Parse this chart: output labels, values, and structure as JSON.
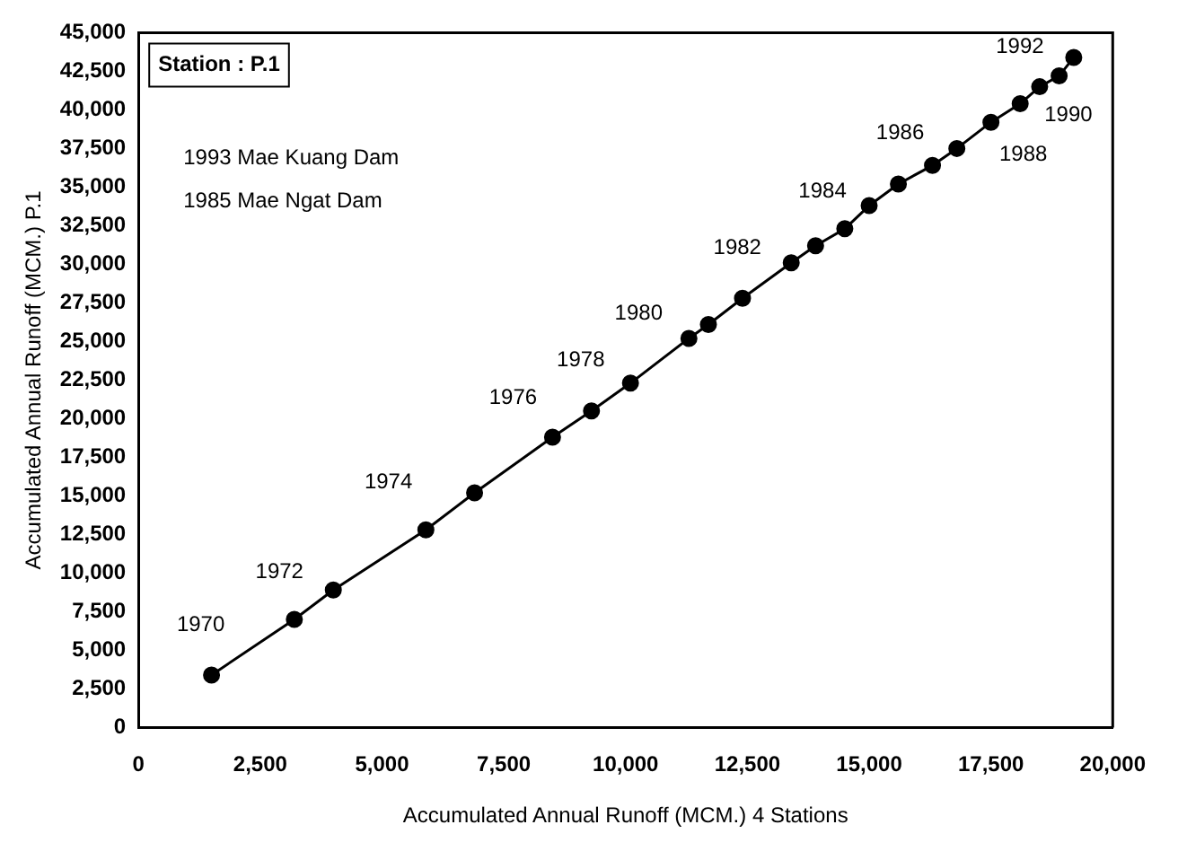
{
  "chart_data": {
    "type": "line",
    "xlabel": "Accumulated Annual Runoff (MCM.) 4 Stations",
    "ylabel": "Accumulated Annual Runoff (MCM.) P.1",
    "x": [
      1500,
      3200,
      4000,
      5900,
      6900,
      8500,
      9300,
      10100,
      11300,
      11700,
      12400,
      13400,
      13900,
      14500,
      15000,
      15600,
      16300,
      16800,
      17500,
      18100,
      18500,
      18900,
      19200
    ],
    "series": [
      {
        "color": "#000000",
        "values": [
          3400,
          7000,
          8900,
          12800,
          15200,
          18800,
          20500,
          22300,
          25200,
          26100,
          27800,
          30100,
          31200,
          32300,
          33800,
          35200,
          36400,
          37500,
          39200,
          40400,
          41500,
          42200,
          43400
        ]
      }
    ],
    "xlim": [
      0,
      20000
    ],
    "xticks": [
      0,
      {
        "value": 2500,
        "label": "2,500"
      },
      {
        "value": 5000,
        "label": "5,000"
      },
      {
        "value": 7500,
        "label": "7,500"
      },
      {
        "value": 10000,
        "label": "10,000"
      },
      {
        "value": 12500,
        "label": "12,500"
      },
      {
        "value": 15000,
        "label": "15,000"
      },
      {
        "value": 17500,
        "label": "17,500"
      },
      {
        "value": 20000,
        "label": "20,000"
      }
    ],
    "ylim": [
      0,
      45000
    ],
    "yticks": [
      0,
      {
        "value": 2500,
        "label": "2,500"
      },
      {
        "value": 5000,
        "label": "5,000"
      },
      {
        "value": 7500,
        "label": "7,500"
      },
      {
        "value": 10000,
        "label": "10,000"
      },
      {
        "value": 12500,
        "label": "12,500"
      },
      {
        "value": 15000,
        "label": "15,000"
      },
      {
        "value": 17500,
        "label": "17,500"
      },
      {
        "value": 20000,
        "label": "20,000"
      },
      {
        "value": 22500,
        "label": "22,500"
      },
      {
        "value": 25000,
        "label": "25,000"
      },
      {
        "value": 27500,
        "label": "27,500"
      },
      {
        "value": 30000,
        "label": "30,000"
      },
      {
        "value": 32500,
        "label": "32,500"
      },
      {
        "value": 35000,
        "label": "35,000"
      },
      {
        "value": 37500,
        "label": "37,500"
      },
      {
        "value": 40000,
        "label": "40,000"
      },
      {
        "value": 42500,
        "label": "42,500"
      },
      {
        "value": 45000,
        "label": "45,000"
      }
    ],
    "marker": "circle",
    "line_style": "solid",
    "grid": false,
    "legend": false,
    "annotations": [
      "Station : P.1",
      "1993 Mae Kuang Dam",
      "1985 Mae Ngat Dam",
      {
        "text": "1970",
        "x": 1500,
        "y": 3400
      },
      {
        "text": "1972",
        "x": 4000,
        "y": 8900
      },
      {
        "text": "1974",
        "x": 6900,
        "y": 15200
      },
      {
        "text": "1976",
        "x": 8500,
        "y": 18800
      },
      {
        "text": "1978",
        "x": 9300,
        "y": 20500
      },
      {
        "text": "1980",
        "x": 11300,
        "y": 25200
      },
      {
        "text": "1982",
        "x": 13400,
        "y": 30100
      },
      {
        "text": "1984",
        "x": 15000,
        "y": 33800
      },
      {
        "text": "1986",
        "x": 16300,
        "y": 36400
      },
      {
        "text": "1988",
        "x": 17500,
        "y": 39200
      },
      {
        "text": "1990",
        "x": 18500,
        "y": 41500
      },
      {
        "text": "1992",
        "x": 19200,
        "y": 43400
      }
    ]
  }
}
